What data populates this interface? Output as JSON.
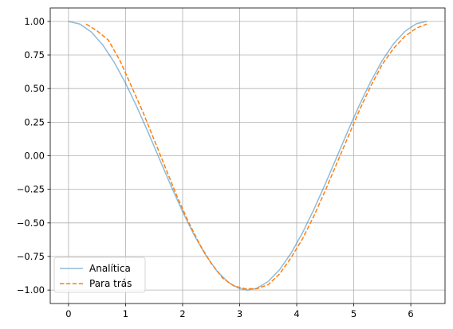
{
  "chart_data": {
    "type": "line",
    "title": "",
    "xlabel": "",
    "ylabel": "",
    "xlim": [
      -0.32,
      6.6
    ],
    "ylim": [
      -1.1,
      1.1
    ],
    "xticks": [
      0,
      1,
      2,
      3,
      4,
      5,
      6
    ],
    "yticks": [
      -1.0,
      -0.75,
      -0.5,
      -0.25,
      0.0,
      0.25,
      0.5,
      0.75,
      1.0
    ],
    "xtick_labels": [
      "0",
      "1",
      "2",
      "3",
      "4",
      "5",
      "6"
    ],
    "ytick_labels": [
      "−1.00",
      "−0.75",
      "−0.50",
      "−0.25",
      "0.00",
      "0.25",
      "0.50",
      "0.75",
      "1.00"
    ],
    "grid": true,
    "legend_position": "lower-left",
    "series": [
      {
        "name": "Analítica",
        "color": "#1f77b4",
        "opacity": 0.5,
        "dash": "solid",
        "x": [
          0.0,
          0.2,
          0.4,
          0.6,
          0.8,
          1.0,
          1.2,
          1.4,
          1.6,
          1.8,
          2.0,
          2.2,
          2.4,
          2.6,
          2.8,
          3.0,
          3.14,
          3.3,
          3.5,
          3.7,
          3.9,
          4.1,
          4.3,
          4.5,
          4.7,
          4.9,
          5.1,
          5.3,
          5.5,
          5.7,
          5.9,
          6.1,
          6.28
        ],
        "y": [
          1.0,
          0.98,
          0.921,
          0.825,
          0.697,
          0.54,
          0.362,
          0.17,
          -0.029,
          -0.227,
          -0.416,
          -0.589,
          -0.737,
          -0.857,
          -0.942,
          -0.99,
          -1.0,
          -0.987,
          -0.936,
          -0.848,
          -0.726,
          -0.575,
          -0.401,
          -0.211,
          -0.012,
          0.187,
          0.378,
          0.554,
          0.709,
          0.835,
          0.927,
          0.983,
          1.0
        ]
      },
      {
        "name": "Para trás",
        "color": "#ff7f0e",
        "opacity": 1,
        "dash": "dashed",
        "x": [
          0.31,
          0.5,
          0.7,
          0.9,
          1.1,
          1.3,
          1.5,
          1.7,
          1.9,
          2.1,
          2.3,
          2.5,
          2.7,
          2.9,
          3.1,
          3.3,
          3.5,
          3.7,
          3.9,
          4.1,
          4.3,
          4.5,
          4.7,
          4.9,
          5.1,
          5.3,
          5.5,
          5.7,
          5.9,
          6.1,
          6.28
        ],
        "y": [
          0.98,
          0.93,
          0.86,
          0.71,
          0.52,
          0.33,
          0.12,
          -0.09,
          -0.3,
          -0.49,
          -0.66,
          -0.8,
          -0.91,
          -0.97,
          -0.99,
          -0.99,
          -0.96,
          -0.88,
          -0.76,
          -0.62,
          -0.45,
          -0.26,
          -0.06,
          0.14,
          0.34,
          0.52,
          0.68,
          0.8,
          0.89,
          0.95,
          0.98
        ]
      }
    ]
  }
}
